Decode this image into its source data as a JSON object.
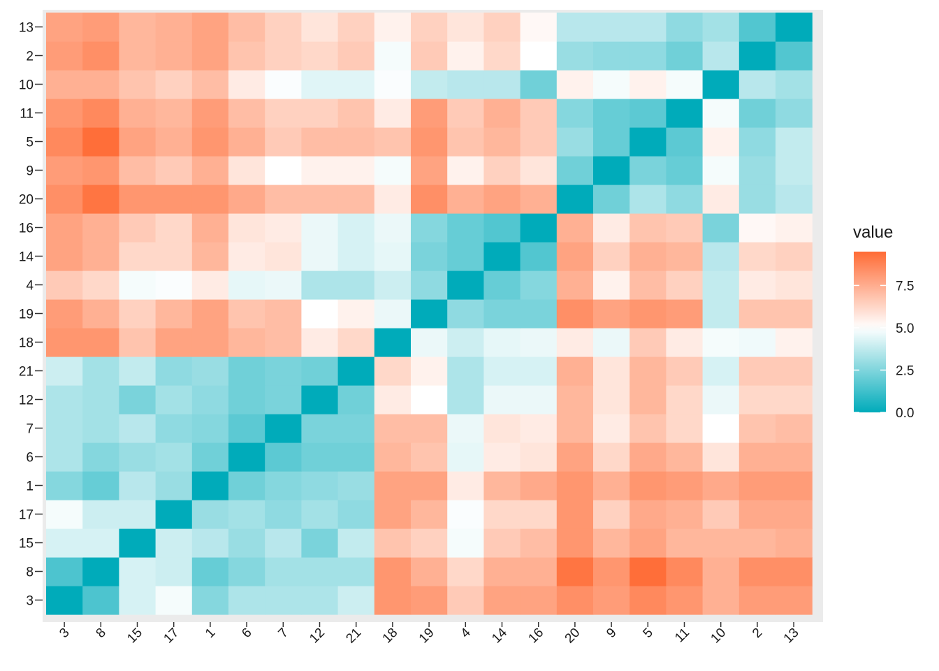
{
  "chart_data": {
    "type": "heatmap",
    "x_categories": [
      "3",
      "8",
      "15",
      "17",
      "1",
      "6",
      "7",
      "12",
      "21",
      "18",
      "19",
      "4",
      "14",
      "16",
      "20",
      "9",
      "5",
      "11",
      "10",
      "2",
      "13"
    ],
    "y_categories_bottom_to_top": [
      "3",
      "8",
      "15",
      "17",
      "1",
      "6",
      "7",
      "12",
      "21",
      "18",
      "19",
      "4",
      "14",
      "16",
      "20",
      "9",
      "5",
      "11",
      "10",
      "2",
      "13"
    ],
    "values_bottom_to_top": [
      [
        0.0,
        1.5,
        4.2,
        4.8,
        2.6,
        3.4,
        3.4,
        3.4,
        4.0,
        8.2,
        8.0,
        6.6,
        7.8,
        7.8,
        8.4,
        8.0,
        8.6,
        8.2,
        7.4,
        8.0,
        8.0
      ],
      [
        1.5,
        0.0,
        4.2,
        4.0,
        2.0,
        2.6,
        3.2,
        3.2,
        3.2,
        8.2,
        7.4,
        6.2,
        7.4,
        7.4,
        9.2,
        8.2,
        9.4,
        8.6,
        7.4,
        8.4,
        8.4
      ],
      [
        4.2,
        4.2,
        0.0,
        4.0,
        3.6,
        3.0,
        3.6,
        2.4,
        3.8,
        6.8,
        6.4,
        4.8,
        6.6,
        7.0,
        8.2,
        7.2,
        7.8,
        7.2,
        7.2,
        7.2,
        7.4
      ],
      [
        4.8,
        4.0,
        4.0,
        0.0,
        3.0,
        3.2,
        2.8,
        3.2,
        2.8,
        7.8,
        7.2,
        4.9,
        6.2,
        6.2,
        8.2,
        6.4,
        7.6,
        7.4,
        6.6,
        7.6,
        7.6
      ],
      [
        2.6,
        2.0,
        3.6,
        3.0,
        0.0,
        2.2,
        2.6,
        2.8,
        3.0,
        7.8,
        7.8,
        5.6,
        7.2,
        7.6,
        8.2,
        7.4,
        8.2,
        8.0,
        7.6,
        8.0,
        8.0
      ],
      [
        3.4,
        2.6,
        3.0,
        3.2,
        2.2,
        0.0,
        1.8,
        2.2,
        2.2,
        7.2,
        6.8,
        4.5,
        5.6,
        5.8,
        7.8,
        6.2,
        7.6,
        7.2,
        5.8,
        7.4,
        7.4
      ],
      [
        3.4,
        3.2,
        3.6,
        2.8,
        2.6,
        1.8,
        0.0,
        2.4,
        2.4,
        7.0,
        7.0,
        4.6,
        5.8,
        5.6,
        7.2,
        5.6,
        6.8,
        6.2,
        5.0,
        6.8,
        7.0
      ],
      [
        3.4,
        3.2,
        2.4,
        3.2,
        2.8,
        2.2,
        2.4,
        0.0,
        2.2,
        5.6,
        5.0,
        3.4,
        4.6,
        4.6,
        7.2,
        5.8,
        7.2,
        6.2,
        4.6,
        6.2,
        6.2
      ],
      [
        4.0,
        3.2,
        3.8,
        2.8,
        3.0,
        2.2,
        2.4,
        2.2,
        0.0,
        6.2,
        5.4,
        3.4,
        4.2,
        4.2,
        7.4,
        5.8,
        7.2,
        6.6,
        4.2,
        6.6,
        6.6
      ],
      [
        8.2,
        8.2,
        6.8,
        7.8,
        7.8,
        7.2,
        7.0,
        5.6,
        6.2,
        0.0,
        4.6,
        4.0,
        4.5,
        4.6,
        5.6,
        4.6,
        6.6,
        5.6,
        4.8,
        4.7,
        5.4
      ],
      [
        8.0,
        7.4,
        6.4,
        7.2,
        7.8,
        6.8,
        7.0,
        5.0,
        5.4,
        4.6,
        0.0,
        2.8,
        2.4,
        2.4,
        8.4,
        7.8,
        8.2,
        8.0,
        3.8,
        6.8,
        6.8
      ],
      [
        6.6,
        6.2,
        4.8,
        4.9,
        5.6,
        4.5,
        4.6,
        3.4,
        3.4,
        4.0,
        2.8,
        0.0,
        2.0,
        2.6,
        7.4,
        5.4,
        7.0,
        6.4,
        3.8,
        5.6,
        5.8
      ],
      [
        7.8,
        7.4,
        6.2,
        6.2,
        7.2,
        5.6,
        5.8,
        4.6,
        4.2,
        4.5,
        2.4,
        2.0,
        0.0,
        1.6,
        7.8,
        6.4,
        7.4,
        7.2,
        3.6,
        6.2,
        6.4
      ],
      [
        7.8,
        7.4,
        6.6,
        6.2,
        7.4,
        5.8,
        5.6,
        4.6,
        4.2,
        4.6,
        2.6,
        2.0,
        1.6,
        0.0,
        7.4,
        5.6,
        6.8,
        6.6,
        2.4,
        5.2,
        5.4
      ],
      [
        8.4,
        9.2,
        8.2,
        8.2,
        8.2,
        7.6,
        7.0,
        7.0,
        7.0,
        5.6,
        8.4,
        7.4,
        7.8,
        7.4,
        0.0,
        2.2,
        3.4,
        2.8,
        5.6,
        3.0,
        3.6
      ],
      [
        8.0,
        8.2,
        7.0,
        6.6,
        7.4,
        5.8,
        5.0,
        5.4,
        5.4,
        4.8,
        7.8,
        5.4,
        6.4,
        5.8,
        2.2,
        0.0,
        2.4,
        2.0,
        4.8,
        3.0,
        3.8
      ],
      [
        8.6,
        9.4,
        7.8,
        7.4,
        8.2,
        7.4,
        6.6,
        7.0,
        7.0,
        6.8,
        8.2,
        6.8,
        7.2,
        6.6,
        3.0,
        2.0,
        0.0,
        1.8,
        5.4,
        2.8,
        3.8
      ],
      [
        8.2,
        8.6,
        7.4,
        7.2,
        8.0,
        7.0,
        6.4,
        6.4,
        6.8,
        5.6,
        8.0,
        6.6,
        7.4,
        6.6,
        2.6,
        2.0,
        1.8,
        0.0,
        4.8,
        2.2,
        2.8
      ],
      [
        7.4,
        7.4,
        6.8,
        6.4,
        7.0,
        5.6,
        4.9,
        4.4,
        4.4,
        4.9,
        3.8,
        3.6,
        3.6,
        2.2,
        5.4,
        4.8,
        5.4,
        4.8,
        0.0,
        3.6,
        3.2
      ],
      [
        8.0,
        8.4,
        7.2,
        7.4,
        7.8,
        6.8,
        6.4,
        6.2,
        6.6,
        4.8,
        6.6,
        5.4,
        6.2,
        5.0,
        3.0,
        2.8,
        2.8,
        2.2,
        3.6,
        0.0,
        1.6
      ],
      [
        7.8,
        8.0,
        7.2,
        7.4,
        7.8,
        7.0,
        6.4,
        5.8,
        6.4,
        5.4,
        6.4,
        5.8,
        6.4,
        5.2,
        3.6,
        3.6,
        3.6,
        2.8,
        3.2,
        1.6,
        0.0
      ]
    ],
    "color_scale": {
      "low": "#00abba",
      "mid": "#ffffff",
      "high": "#ff6b35",
      "midpoint": 5.0,
      "min": 0.0,
      "max": 9.5
    },
    "panel_background": "#ebebeb",
    "legend": {
      "title": "value",
      "ticks": [
        "7.5",
        "5.0",
        "2.5",
        "0.0"
      ],
      "tick_values": [
        7.5,
        5.0,
        2.5,
        0.0
      ],
      "position": "right"
    },
    "title": "",
    "xlabel": "",
    "ylabel": ""
  }
}
